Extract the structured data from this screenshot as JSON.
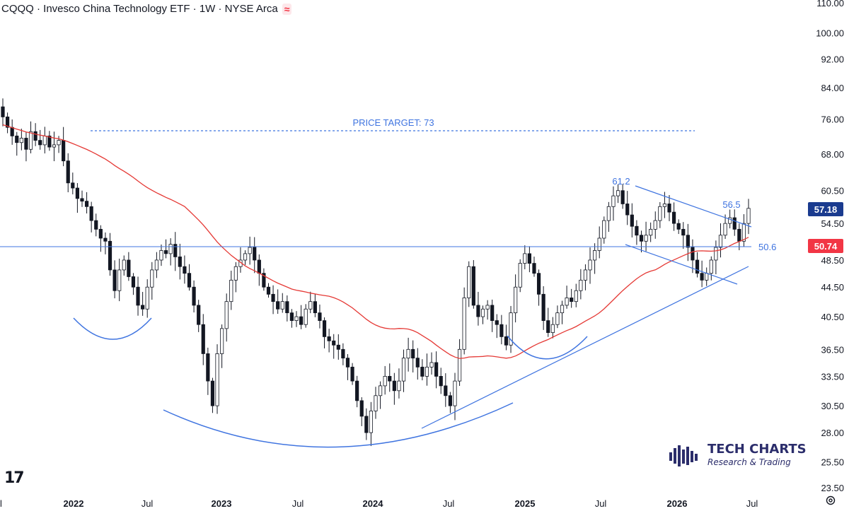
{
  "header": {
    "title": "CQQQ · Invesco China Technology ETF · 1W · NYSE Arca",
    "indicator_glyph": "≈"
  },
  "colors": {
    "up": "#ffffff",
    "down": "#131722",
    "ma": "#e53935",
    "trendline": "#3f74e0",
    "price_badge": "#1a3b8f",
    "ma_badge": "#f23645",
    "target_text": "#3f74e0"
  },
  "annotations": {
    "price_target": "PRICE TARGET: 73",
    "high_label": "61.2",
    "mid_label": "56.5",
    "neckline_label": "50.6"
  },
  "badges": {
    "last_price": "57.18",
    "ma_value": "50.74"
  },
  "branding": {
    "tv_logo": "17",
    "name": "TECH CHARTS",
    "tagline": "Research & Trading"
  },
  "icons": {
    "settings": "gear-icon",
    "tv": "tradingview-logo-icon",
    "brand": "tech-charts-logo-icon"
  },
  "chart_data": {
    "type": "candlestick",
    "scale": "log",
    "ylim": [
      22.5,
      112
    ],
    "y_ticks": [
      "110.00",
      "100.00",
      "92.00",
      "84.00",
      "76.00",
      "68.00",
      "60.50",
      "54.50",
      "48.50",
      "44.50",
      "40.50",
      "36.50",
      "33.50",
      "30.50",
      "28.00",
      "25.50",
      "23.50"
    ],
    "x_ticks": [
      {
        "label": "l",
        "bold": false
      },
      {
        "label": "2022",
        "bold": true
      },
      {
        "label": "Jul",
        "bold": false
      },
      {
        "label": "2023",
        "bold": true
      },
      {
        "label": "Jul",
        "bold": false
      },
      {
        "label": "2024",
        "bold": true
      },
      {
        "label": "Jul",
        "bold": false
      },
      {
        "label": "2025",
        "bold": true
      },
      {
        "label": "Jul",
        "bold": false
      },
      {
        "label": "2026",
        "bold": true
      },
      {
        "label": "Jul",
        "bold": false
      }
    ],
    "price_target": 73,
    "neckline": 50.6,
    "last_price": 57.18,
    "ma_last": 50.74,
    "close_series": [
      76.5,
      74,
      72,
      70.5,
      71.5,
      69,
      73,
      71,
      70,
      72,
      69.5,
      70,
      71,
      66.5,
      62,
      61,
      59,
      58.5,
      57.5,
      55,
      53.5,
      52,
      51.5,
      47,
      44,
      47,
      48.5,
      46,
      44.5,
      42,
      41.5,
      44.5,
      47,
      48.5,
      50,
      49.5,
      51,
      49,
      47.5,
      46.5,
      44.5,
      42,
      39.5,
      36,
      33,
      30.5,
      36,
      39,
      42.5,
      45.5,
      47.5,
      48.5,
      49.5,
      50.5,
      48.5,
      46.5,
      44.5,
      43.5,
      42.5,
      41.5,
      42.5,
      41,
      40,
      40.5,
      39.5,
      41.5,
      42.5,
      41,
      40,
      38,
      37.5,
      37,
      36.5,
      35.5,
      34.5,
      33,
      31,
      29.5,
      28,
      30,
      31.5,
      32.5,
      33.5,
      33,
      32,
      33,
      35.5,
      36.5,
      35.5,
      34.5,
      33.5,
      34.5,
      35,
      33.5,
      32.5,
      31.5,
      30.5,
      33,
      36.5,
      43,
      47.5,
      42,
      40.5,
      41.5,
      42,
      40,
      39.5,
      38,
      37,
      41,
      44.5,
      48,
      49.5,
      48,
      46.5,
      43.5,
      40,
      38.5,
      39.5,
      41,
      42,
      43,
      42.5,
      44,
      45.5,
      47,
      48.5,
      50,
      52,
      55,
      57.5,
      59.5,
      60.5,
      58,
      56,
      54,
      52.5,
      51.5,
      52.5,
      53.5,
      55,
      57.5,
      58,
      56.5,
      54.5,
      53.5,
      52.5,
      50.5,
      48.5,
      46.5,
      45.5,
      46.5,
      48.5,
      50.5,
      52.5,
      54.5,
      55.5,
      53.5,
      51.5,
      54.5,
      57.18
    ]
  }
}
